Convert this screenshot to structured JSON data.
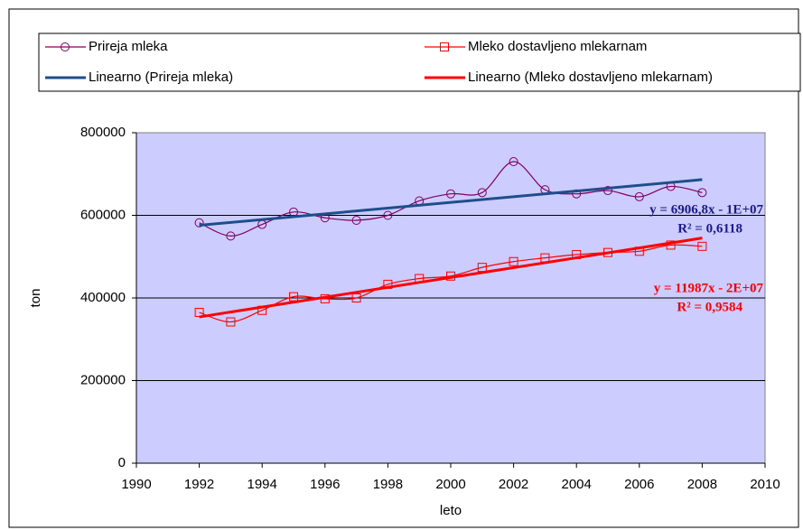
{
  "chart_data": {
    "type": "line",
    "x": [
      1992,
      1993,
      1994,
      1995,
      1996,
      1997,
      1998,
      1999,
      2000,
      2001,
      2002,
      2003,
      2004,
      2005,
      2006,
      2007,
      2008
    ],
    "xlim": [
      1990,
      2010
    ],
    "xticks": [
      1990,
      1992,
      1994,
      1996,
      1998,
      2000,
      2002,
      2004,
      2006,
      2008,
      2010
    ],
    "ylim": [
      0,
      800000
    ],
    "yticks": [
      0,
      200000,
      400000,
      600000,
      800000
    ],
    "xlabel": "leto",
    "ylabel": "ton",
    "grid": true,
    "series": [
      {
        "name": "Prireja mleka",
        "color": "#800060",
        "marker": "circle",
        "values": [
          582000,
          550000,
          578000,
          608000,
          594000,
          588000,
          600000,
          635000,
          652000,
          655000,
          730000,
          662000,
          652000,
          660000,
          645000,
          670000,
          655000
        ]
      },
      {
        "name": "Mleko dostavljeno mlekarnam",
        "color": "#ff0000",
        "marker": "square",
        "values": [
          365000,
          342000,
          370000,
          403000,
          398000,
          400000,
          433000,
          447000,
          453000,
          474000,
          488000,
          497000,
          505000,
          510000,
          513000,
          528000,
          525000
        ]
      }
    ],
    "trendlines": [
      {
        "name": "Linearno (Prireja mleka)",
        "color": "#1f4e8c",
        "x": [
          1992,
          2008
        ],
        "values": [
          576000,
          686500
        ]
      },
      {
        "name": "Linearno (Mleko dostavljeno mlekarnam)",
        "color": "#ff0000",
        "x": [
          1992,
          2008
        ],
        "values": [
          354000,
          545000
        ]
      }
    ],
    "annotations": [
      {
        "equation": "y = 6906,8x - 1E+07",
        "r2": "R² = 0,6118",
        "color": "#1a1a8c"
      },
      {
        "equation": "y = 11987x - 2E+07",
        "r2": "R² = 0,9584",
        "color": "#ff0000"
      }
    ]
  }
}
